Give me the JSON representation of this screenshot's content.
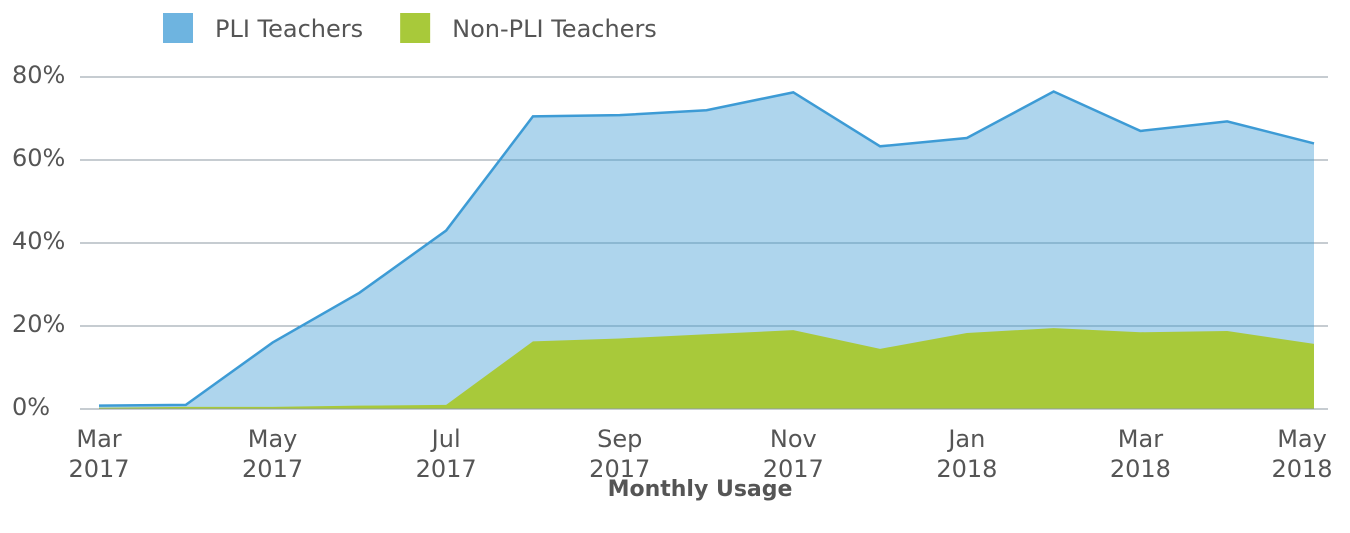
{
  "chart_data": {
    "type": "area",
    "x_label": "Monthly Usage",
    "categories": [
      "Mar 2017",
      null,
      "May 2017",
      null,
      "Jul 2017",
      null,
      "Sep 2017",
      null,
      "Nov 2017",
      null,
      "Jan 2018",
      null,
      "Mar 2018",
      null,
      "May 2018"
    ],
    "series": [
      {
        "name": "PLI Teachers",
        "color": "#3d9bd5",
        "values": [
          0.8,
          1.0,
          16,
          28,
          43,
          70.5,
          70.8,
          72,
          76.3,
          63.3,
          65.3,
          76.5,
          67,
          69.3,
          64
        ]
      },
      {
        "name": "Non-PLI Teachers",
        "color": "#a8c93a",
        "values": [
          0.3,
          0.5,
          0.5,
          0.8,
          1.0,
          16.3,
          17,
          18,
          19,
          14.5,
          18.3,
          19.5,
          18.5,
          18.8,
          15.7
        ]
      }
    ],
    "ylim": [
      0,
      80
    ],
    "yticks": [
      {
        "value": 0,
        "label": "0%"
      },
      {
        "value": 20,
        "label": "20%"
      },
      {
        "value": 40,
        "label": "40%"
      },
      {
        "value": 60,
        "label": "60%"
      },
      {
        "value": 80,
        "label": "80%"
      }
    ],
    "grid": true,
    "legend": "top"
  }
}
